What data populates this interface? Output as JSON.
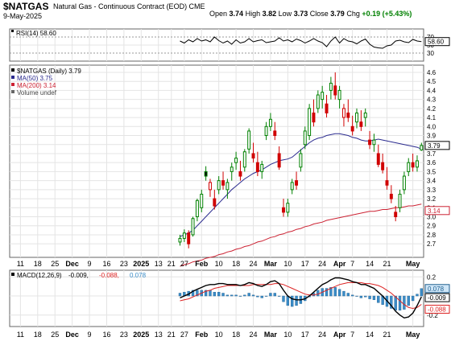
{
  "header": {
    "symbol": "$NATGAS",
    "description": "Natural Gas - Continuous Contract (EOD) CME",
    "date": "9-May-2025",
    "open_label": "Open",
    "open": "3.74",
    "high_label": "High",
    "high": "3.82",
    "low_label": "Low",
    "low": "3.73",
    "close_label": "Close",
    "close": "3.79",
    "chg_label": "Chg",
    "chg": "+0.19 (+5.43%)"
  },
  "colors": {
    "up": "#008000",
    "down": "#d00000",
    "candle_body_down": "#000000",
    "ma50": "#2b2b8f",
    "ma200": "#cc2233",
    "macd_hist": "#3a8cc8",
    "macd_line": "#000000",
    "macd_signal": "#dd2222",
    "grid": "#e4e4e4"
  },
  "chart_data": [
    {
      "type": "line",
      "name": "rsi_panel",
      "legend": "RSI(14) 58.60",
      "last_label": "58.60",
      "ylim": [
        10,
        90
      ],
      "y_ticks": [
        "70",
        "50",
        "30"
      ],
      "values": [
        60,
        55,
        63,
        58,
        66,
        60,
        63,
        58,
        70,
        61,
        55,
        60,
        52,
        63,
        55,
        58,
        66,
        58,
        61,
        63,
        56,
        58,
        60,
        68,
        60,
        63,
        58,
        65,
        61,
        55,
        60,
        66,
        60,
        56,
        46,
        60,
        70,
        55,
        66,
        60,
        58,
        53,
        60,
        65,
        52,
        45,
        43,
        42,
        48,
        50,
        60,
        62,
        58,
        56,
        64,
        60,
        58.6
      ]
    },
    {
      "type": "candlestick",
      "name": "price_panel",
      "legend": [
        "$NATGAS (Daily) 3.79",
        "MA(50) 3.75",
        "MA(200) 3.14",
        "Volume undef"
      ],
      "ylim": [
        2.55,
        4.68
      ],
      "y_ticks": [
        "4.6",
        "4.5",
        "4.4",
        "4.3",
        "4.2",
        "4.1",
        "4.0",
        "3.9",
        "3.8",
        "3.7",
        "3.6",
        "3.5",
        "3.4",
        "3.3",
        "3.2",
        "3.1",
        "3.0",
        "2.9",
        "2.8",
        "2.7"
      ],
      "last_close_label": "3.79",
      "ma50_label": "3.75",
      "ma200_label": "3.14",
      "ohlc": [
        [
          2.72,
          2.8,
          2.68,
          2.76
        ],
        [
          2.76,
          2.86,
          2.72,
          2.82
        ],
        [
          2.82,
          2.85,
          2.65,
          2.7
        ],
        [
          2.8,
          3.0,
          2.78,
          2.98
        ],
        [
          3.0,
          3.2,
          2.95,
          3.18
        ],
        [
          3.1,
          3.3,
          3.05,
          3.25
        ],
        [
          3.5,
          3.56,
          3.4,
          3.45
        ],
        [
          3.3,
          3.42,
          3.22,
          3.38
        ],
        [
          3.2,
          3.3,
          3.08,
          3.12
        ],
        [
          3.3,
          3.45,
          3.25,
          3.4
        ],
        [
          3.4,
          3.5,
          3.3,
          3.35
        ],
        [
          3.3,
          3.42,
          3.2,
          3.38
        ],
        [
          3.5,
          3.6,
          3.4,
          3.55
        ],
        [
          3.6,
          3.72,
          3.52,
          3.65
        ],
        [
          3.5,
          3.62,
          3.4,
          3.45
        ],
        [
          3.55,
          3.75,
          3.5,
          3.72
        ],
        [
          3.75,
          3.98,
          3.7,
          3.95
        ],
        [
          3.7,
          3.82,
          3.6,
          3.65
        ],
        [
          3.6,
          3.72,
          3.45,
          3.5
        ],
        [
          3.5,
          3.62,
          3.42,
          3.58
        ],
        [
          3.9,
          4.05,
          3.85,
          4.0
        ],
        [
          4.0,
          4.15,
          3.95,
          4.08
        ],
        [
          3.95,
          4.05,
          3.85,
          3.9
        ],
        [
          3.7,
          3.78,
          3.52,
          3.55
        ],
        [
          3.1,
          3.2,
          3.0,
          3.05
        ],
        [
          3.05,
          3.2,
          3.0,
          3.15
        ],
        [
          3.3,
          3.42,
          3.25,
          3.38
        ],
        [
          3.4,
          3.5,
          3.3,
          3.35
        ],
        [
          3.55,
          3.75,
          3.5,
          3.7
        ],
        [
          3.8,
          4.0,
          3.75,
          3.95
        ],
        [
          3.9,
          4.25,
          3.85,
          4.2
        ],
        [
          4.15,
          4.3,
          4.0,
          4.05
        ],
        [
          4.2,
          4.4,
          4.15,
          4.35
        ],
        [
          4.3,
          4.45,
          4.2,
          4.38
        ],
        [
          4.25,
          4.35,
          4.1,
          4.15
        ],
        [
          4.4,
          4.55,
          4.3,
          4.48
        ],
        [
          4.45,
          4.6,
          4.3,
          4.35
        ],
        [
          4.3,
          4.45,
          4.2,
          4.4
        ],
        [
          4.1,
          4.25,
          4.0,
          4.2
        ],
        [
          4.15,
          4.3,
          4.05,
          4.1
        ],
        [
          4.0,
          4.12,
          3.9,
          3.95
        ],
        [
          4.05,
          4.2,
          3.98,
          4.15
        ],
        [
          4.05,
          4.18,
          3.95,
          4.0
        ],
        [
          4.1,
          4.2,
          4.0,
          4.15
        ],
        [
          3.85,
          3.95,
          3.75,
          3.8
        ],
        [
          3.8,
          3.92,
          3.72,
          3.85
        ],
        [
          3.7,
          3.8,
          3.55,
          3.58
        ],
        [
          3.6,
          3.7,
          3.48,
          3.52
        ],
        [
          3.4,
          3.55,
          3.3,
          3.35
        ],
        [
          3.25,
          3.35,
          3.15,
          3.2
        ],
        [
          3.05,
          3.12,
          2.95,
          3.0
        ],
        [
          3.1,
          3.3,
          3.05,
          3.25
        ],
        [
          3.3,
          3.5,
          3.25,
          3.45
        ],
        [
          3.5,
          3.65,
          3.45,
          3.6
        ],
        [
          3.6,
          3.7,
          3.5,
          3.55
        ],
        [
          3.55,
          3.68,
          3.5,
          3.62
        ],
        [
          3.74,
          3.82,
          3.73,
          3.79
        ]
      ],
      "ma50": [
        2.78,
        2.8,
        2.82,
        2.85,
        2.9,
        2.95,
        3.0,
        3.05,
        3.1,
        3.15,
        3.2,
        3.25,
        3.3,
        3.34,
        3.38,
        3.42,
        3.45,
        3.48,
        3.5,
        3.52,
        3.55,
        3.58,
        3.6,
        3.62,
        3.63,
        3.64,
        3.66,
        3.7,
        3.74,
        3.78,
        3.82,
        3.85,
        3.87,
        3.88,
        3.9,
        3.91,
        3.92,
        3.92,
        3.91,
        3.9,
        3.88,
        3.87,
        3.85,
        3.84,
        3.84,
        3.85,
        3.86,
        3.85,
        3.84,
        3.83,
        3.82,
        3.81,
        3.8,
        3.79,
        3.78,
        3.77,
        3.75
      ],
      "ma200": [
        2.45,
        2.47,
        2.48,
        2.5,
        2.51,
        2.52,
        2.54,
        2.55,
        2.56,
        2.58,
        2.59,
        2.61,
        2.62,
        2.64,
        2.65,
        2.67,
        2.68,
        2.7,
        2.72,
        2.73,
        2.75,
        2.77,
        2.78,
        2.8,
        2.81,
        2.83,
        2.84,
        2.86,
        2.87,
        2.89,
        2.9,
        2.92,
        2.93,
        2.94,
        2.96,
        2.97,
        2.98,
        2.99,
        3.0,
        3.01,
        3.02,
        3.03,
        3.04,
        3.05,
        3.06,
        3.06,
        3.07,
        3.08,
        3.08,
        3.09,
        3.1,
        3.1,
        3.11,
        3.12,
        3.12,
        3.13,
        3.14
      ]
    },
    {
      "type": "line",
      "name": "macd_panel",
      "legend": [
        "MACD(12,26,9)",
        "-0.009,",
        "-0.088,",
        "0.078"
      ],
      "ylim": [
        -0.32,
        0.27
      ],
      "y_ticks": [
        "0.2",
        "0.0",
        "-0.2"
      ],
      "last_labels": [
        "0.078",
        "-0.009",
        "-0.088"
      ],
      "macd": [
        -0.02,
        0.0,
        0.02,
        0.05,
        0.07,
        0.09,
        0.11,
        0.12,
        0.12,
        0.13,
        0.13,
        0.12,
        0.12,
        0.12,
        0.11,
        0.12,
        0.14,
        0.13,
        0.11,
        0.1,
        0.12,
        0.15,
        0.16,
        0.13,
        0.06,
        0.0,
        -0.03,
        -0.04,
        -0.04,
        -0.03,
        0.0,
        0.04,
        0.08,
        0.12,
        0.14,
        0.17,
        0.19,
        0.19,
        0.18,
        0.17,
        0.15,
        0.14,
        0.12,
        0.12,
        0.1,
        0.08,
        0.04,
        0.0,
        -0.05,
        -0.1,
        -0.16,
        -0.2,
        -0.23,
        -0.22,
        -0.18,
        -0.1,
        -0.009
      ],
      "signal": [
        -0.05,
        -0.04,
        -0.03,
        -0.01,
        0.01,
        0.03,
        0.05,
        0.06,
        0.08,
        0.09,
        0.1,
        0.11,
        0.11,
        0.11,
        0.11,
        0.11,
        0.11,
        0.12,
        0.12,
        0.12,
        0.12,
        0.12,
        0.13,
        0.13,
        0.12,
        0.1,
        0.08,
        0.06,
        0.04,
        0.02,
        0.01,
        0.01,
        0.02,
        0.04,
        0.06,
        0.08,
        0.1,
        0.12,
        0.13,
        0.14,
        0.14,
        0.14,
        0.14,
        0.13,
        0.13,
        0.12,
        0.11,
        0.09,
        0.06,
        0.03,
        -0.01,
        -0.05,
        -0.09,
        -0.12,
        -0.13,
        -0.12,
        -0.088
      ],
      "histogram": [
        0.03,
        0.04,
        0.05,
        0.06,
        0.06,
        0.06,
        0.06,
        0.06,
        0.04,
        0.04,
        0.03,
        0.01,
        0.01,
        0.01,
        0.0,
        0.01,
        0.03,
        0.01,
        -0.01,
        -0.02,
        0.0,
        0.03,
        0.03,
        0.0,
        -0.06,
        -0.1,
        -0.11,
        -0.1,
        -0.08,
        -0.05,
        -0.01,
        0.03,
        0.06,
        0.08,
        0.08,
        0.09,
        0.09,
        0.07,
        0.05,
        0.03,
        0.01,
        0.0,
        -0.02,
        -0.01,
        -0.03,
        -0.04,
        -0.07,
        -0.09,
        -0.11,
        -0.13,
        -0.15,
        -0.15,
        -0.14,
        -0.1,
        -0.05,
        0.02,
        0.078
      ]
    }
  ],
  "x_axis": [
    {
      "label": "11",
      "i": 2
    },
    {
      "label": "18",
      "i": 6
    },
    {
      "label": "25",
      "i": 10
    },
    {
      "label": "Dec",
      "i": 14,
      "bold": true
    },
    {
      "label": "9",
      "i": 18
    },
    {
      "label": "16",
      "i": 22
    },
    {
      "label": "23",
      "i": 26
    },
    {
      "label": "2025",
      "i": 30,
      "bold": true
    },
    {
      "label": "13",
      "i": 34
    },
    {
      "label": "21",
      "i": 37
    },
    {
      "label": "27",
      "i": 40
    },
    {
      "label": "Feb",
      "i": 44,
      "bold": true
    },
    {
      "label": "10",
      "i": 48
    },
    {
      "label": "18",
      "i": 52
    },
    {
      "label": "24",
      "i": 56
    },
    {
      "label": "Mar",
      "i": 60,
      "bold": true
    },
    {
      "label": "10",
      "i": 64
    },
    {
      "label": "17",
      "i": 68
    },
    {
      "label": "24",
      "i": 72
    },
    {
      "label": "Apr",
      "i": 76,
      "bold": true
    },
    {
      "label": "7",
      "i": 79
    },
    {
      "label": "14",
      "i": 83
    },
    {
      "label": "21",
      "i": 87
    },
    {
      "label": "May",
      "i": 93,
      "bold": true
    }
  ]
}
